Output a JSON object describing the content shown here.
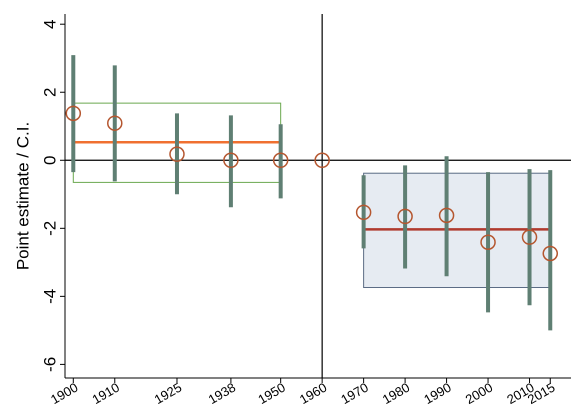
{
  "chart_data": {
    "type": "errorbar",
    "y_label": "Point estimate / C.I.",
    "x": [
      1900,
      1910,
      1925,
      1938,
      1950,
      1960,
      1970,
      1980,
      1990,
      2000,
      2010,
      2015
    ],
    "series": [
      {
        "values": [
          1.38,
          1.09,
          0.18,
          0.0,
          0.0,
          0.0,
          -1.53,
          -1.65,
          -1.62,
          -2.41,
          -2.26,
          -2.74
        ],
        "lower": [
          -0.35,
          -0.62,
          -1.0,
          -1.38,
          -1.12,
          null,
          -2.59,
          -3.18,
          -3.41,
          -4.47,
          -4.26,
          -5.0
        ],
        "upper": [
          3.09,
          2.79,
          1.38,
          1.32,
          1.06,
          null,
          -0.44,
          -0.15,
          0.12,
          -0.35,
          -0.26,
          -0.29
        ],
        "color": "#b5562f",
        "bar_color": "#5f7f73"
      }
    ],
    "regions": [
      {
        "x": [
          1900,
          1950
        ],
        "y": [
          -0.65,
          1.68
        ],
        "mean": 0.53,
        "edge": "#6aa84f",
        "fill": "none",
        "line_color": "#f07030"
      },
      {
        "x": [
          1970,
          2015
        ],
        "y": [
          -3.74,
          -0.38
        ],
        "mean": -2.03,
        "edge": "#5a6b84",
        "fill": "#e6ebf2",
        "line_color": "#b03a2e"
      }
    ],
    "vline": 1960,
    "hline": 0,
    "xlim": [
      1898,
      2020
    ],
    "ylim": [
      -6.4,
      4.3
    ],
    "xticks": [
      1900,
      1910,
      1925,
      1938,
      1950,
      1960,
      1970,
      1980,
      1990,
      2000,
      2010,
      2015
    ],
    "yticks": [
      -6,
      -4,
      -2,
      0,
      2,
      4
    ]
  }
}
